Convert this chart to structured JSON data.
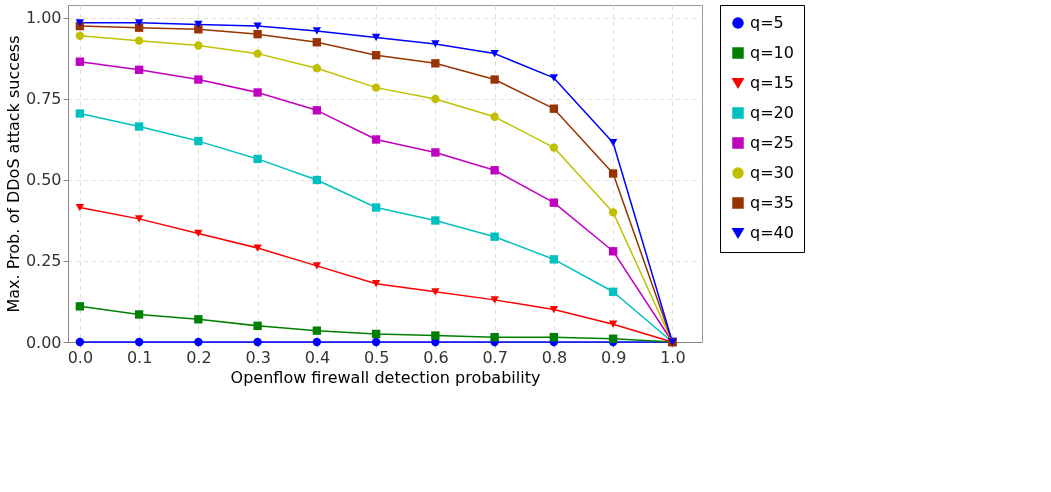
{
  "chart_data": {
    "type": "line",
    "xlabel": "Openflow firewall detection probability",
    "ylabel": "Max. Prob. of DDoS attack success",
    "x": [
      0.0,
      0.1,
      0.2,
      0.3,
      0.4,
      0.5,
      0.6,
      0.7,
      0.8,
      0.9,
      1.0
    ],
    "xlim": [
      -0.02,
      1.05
    ],
    "xticks": [
      {
        "value": 0,
        "label": "0.0"
      },
      0.1,
      0.2,
      0.3,
      0.4,
      0.5,
      0.6,
      0.7,
      0.8,
      0.9,
      {
        "value": 1,
        "label": "1.0"
      }
    ],
    "ylim": [
      0,
      1.04
    ],
    "yticks": [
      {
        "value": 0,
        "label": "0.00"
      },
      0.25,
      {
        "value": 0.5,
        "label": "0.50"
      },
      0.75,
      {
        "value": 1,
        "label": "1.00"
      }
    ],
    "grid": true,
    "legend": "right",
    "line_style": "solid",
    "series": [
      {
        "name": "q=5",
        "color": "#0000ff",
        "marker": "circle",
        "values": [
          0,
          0,
          0,
          0,
          0,
          0,
          0,
          0,
          0,
          0,
          0
        ]
      },
      {
        "name": "q=10",
        "color": "#008000",
        "marker": "square",
        "values": [
          0.11,
          0.085,
          0.07,
          0.05,
          0.035,
          0.025,
          0.02,
          0.015,
          0.015,
          0.01,
          0
        ]
      },
      {
        "name": "q=15",
        "color": "#ff0000",
        "marker": "triangle",
        "values": [
          0.415,
          0.38,
          0.335,
          0.29,
          0.235,
          0.18,
          0.155,
          0.13,
          0.1,
          0.055,
          0
        ]
      },
      {
        "name": "q=20",
        "color": "#00c0c0",
        "marker": "square",
        "values": [
          0.705,
          0.665,
          0.62,
          0.565,
          0.5,
          0.415,
          0.375,
          0.325,
          0.255,
          0.155,
          0
        ]
      },
      {
        "name": "q=25",
        "color": "#c000c0",
        "marker": "square",
        "values": [
          0.865,
          0.84,
          0.81,
          0.77,
          0.715,
          0.625,
          0.585,
          0.53,
          0.43,
          0.28,
          0
        ]
      },
      {
        "name": "q=30",
        "color": "#c0c000",
        "marker": "circle",
        "values": [
          0.945,
          0.93,
          0.915,
          0.89,
          0.845,
          0.785,
          0.75,
          0.695,
          0.6,
          0.4,
          0
        ]
      },
      {
        "name": "q=35",
        "color": "#993300",
        "marker": "square",
        "values": [
          0.975,
          0.97,
          0.965,
          0.95,
          0.925,
          0.885,
          0.86,
          0.81,
          0.72,
          0.52,
          0
        ]
      },
      {
        "name": "q=40",
        "color": "#0000ff",
        "marker": "triangle",
        "values": [
          0.985,
          0.985,
          0.98,
          0.975,
          0.96,
          0.94,
          0.92,
          0.89,
          0.815,
          0.615,
          0
        ]
      }
    ]
  }
}
